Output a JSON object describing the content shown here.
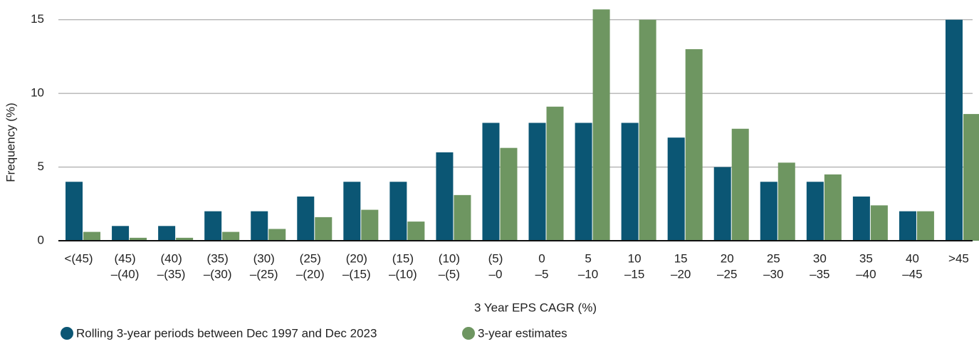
{
  "chart_data": {
    "type": "bar",
    "xlabel": "3 Year EPS CAGR (%)",
    "ylabel": "Frequency (%)",
    "categories": [
      [
        "<(45)"
      ],
      [
        "(45)",
        "–(40)"
      ],
      [
        "(40)",
        "–(35)"
      ],
      [
        "(35)",
        "–(30)"
      ],
      [
        "(30)",
        "–(25)"
      ],
      [
        "(25)",
        "–(20)"
      ],
      [
        "(20)",
        "–(15)"
      ],
      [
        "(15)",
        "–(10)"
      ],
      [
        "(10)",
        "–(5)"
      ],
      [
        "(5)",
        "–0"
      ],
      [
        "0",
        "–5"
      ],
      [
        "5",
        "–10"
      ],
      [
        "10",
        "–15"
      ],
      [
        "15",
        "–20"
      ],
      [
        "20",
        "–25"
      ],
      [
        "25",
        "–30"
      ],
      [
        "30",
        "–35"
      ],
      [
        "35",
        "–40"
      ],
      [
        "40",
        "–45"
      ],
      [
        ">45"
      ]
    ],
    "series": [
      {
        "name": "Rolling 3-year periods between Dec 1997 and Dec 2023",
        "color": "#0b5674",
        "values": [
          4,
          1,
          1,
          2,
          2,
          3,
          4,
          4,
          6,
          8,
          8,
          8,
          8,
          7,
          5,
          4,
          4,
          3,
          2,
          15
        ]
      },
      {
        "name": "3-year estimates",
        "color": "#6e9661",
        "values": [
          0.6,
          0.2,
          0.2,
          0.6,
          0.8,
          1.6,
          2.1,
          1.3,
          3.1,
          6.3,
          9.1,
          15.7,
          15,
          13,
          7.6,
          5.3,
          4.5,
          2.4,
          2,
          8.6
        ]
      }
    ],
    "ylim": [
      0,
      16
    ],
    "yticks": [
      0,
      5,
      10,
      15
    ],
    "grid": true
  }
}
